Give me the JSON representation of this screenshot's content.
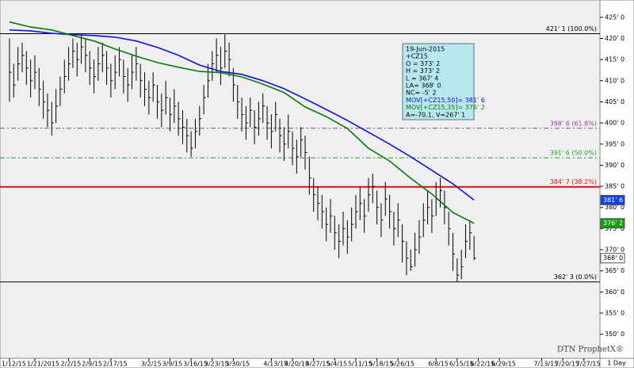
{
  "chart_data": {
    "type": "ohlc",
    "price": {
      "high": [
        420,
        414,
        418,
        419,
        417,
        415,
        416,
        413,
        410,
        407,
        405,
        408,
        411,
        415,
        418,
        420,
        419,
        421,
        420,
        417,
        415,
        418,
        419,
        417,
        414,
        416,
        418,
        415,
        413,
        416,
        418,
        414,
        412,
        410,
        412,
        409,
        407,
        410,
        406,
        408,
        405,
        403,
        401,
        398,
        401,
        404,
        409,
        414,
        417,
        420,
        418,
        421,
        419,
        413,
        409,
        406,
        404,
        406,
        403,
        405,
        407,
        404,
        402,
        405,
        401,
        399,
        402,
        398,
        396,
        399,
        397,
        392,
        387,
        385,
        383,
        380,
        382,
        378,
        376,
        379,
        377,
        380,
        383,
        385,
        382,
        387,
        388,
        384,
        381,
        386,
        383,
        379,
        381,
        376,
        372,
        370,
        374,
        377,
        381,
        384,
        382,
        386,
        387,
        384,
        379,
        374,
        368,
        370,
        376,
        377,
        373.25
      ],
      "low": [
        405,
        406,
        410,
        412,
        409,
        406,
        408,
        404,
        401,
        399,
        397,
        400,
        404,
        407,
        410,
        413,
        411,
        414,
        412,
        409,
        407,
        410,
        412,
        409,
        406,
        408,
        411,
        407,
        405,
        408,
        410,
        406,
        404,
        402,
        405,
        401,
        399,
        402,
        398,
        400,
        397,
        395,
        393,
        392,
        394,
        397,
        402,
        406,
        410,
        412,
        409,
        413,
        411,
        405,
        401,
        398,
        396,
        399,
        395,
        397,
        400,
        396,
        394,
        398,
        393,
        391,
        394,
        390,
        388,
        392,
        389,
        383,
        379,
        377,
        375,
        372,
        374,
        370,
        368,
        371,
        369,
        372,
        375,
        377,
        374,
        379,
        381,
        376,
        373,
        378,
        375,
        371,
        373,
        367,
        364,
        365,
        366,
        369,
        373,
        376,
        374,
        378,
        380,
        376,
        371,
        365,
        362.375,
        363,
        368,
        370,
        367.5
      ],
      "close": [
        412,
        409,
        414,
        416,
        413,
        410,
        412,
        408,
        405,
        403,
        400,
        404,
        408,
        411,
        414,
        417,
        415,
        418,
        416,
        413,
        411,
        414,
        416,
        413,
        410,
        412,
        415,
        411,
        409,
        412,
        414,
        410,
        408,
        406,
        409,
        405,
        403,
        406,
        402,
        404,
        401,
        399,
        397,
        394,
        398,
        401,
        406,
        410,
        414,
        416,
        413,
        417,
        415,
        409,
        405,
        402,
        400,
        403,
        399,
        401,
        404,
        400,
        398,
        402,
        397,
        395,
        398,
        394,
        392,
        396,
        393,
        387,
        383,
        381,
        379,
        376,
        378,
        374,
        372,
        375,
        373,
        376,
        379,
        381,
        378,
        383,
        385,
        380,
        377,
        382,
        379,
        375,
        377,
        372,
        368,
        366,
        370,
        373,
        377,
        380,
        378,
        382,
        384,
        380,
        375,
        369,
        364,
        366,
        372,
        374,
        368
      ]
    },
    "moving_averages": [
      {
        "color": "#1010e0",
        "x": [
          0,
          5,
          10,
          15,
          20,
          25,
          30,
          35,
          40,
          45,
          50,
          55,
          60,
          65,
          70,
          75,
          80,
          85,
          90,
          95,
          100,
          105,
          110
        ],
        "values": [
          422.0,
          421.8,
          421.2,
          420.9,
          420.7,
          420.3,
          419.4,
          417.9,
          416.0,
          413.7,
          412.2,
          411.5,
          410.0,
          408.1,
          405.7,
          403.2,
          400.6,
          397.8,
          395.0,
          392.0,
          388.8,
          385.6,
          381.75
        ]
      },
      {
        "color": "#0a7a0a",
        "x": [
          0,
          5,
          10,
          15,
          20,
          25,
          30,
          35,
          40,
          45,
          50,
          55,
          60,
          65,
          70,
          75,
          80,
          85,
          90,
          95,
          100,
          105,
          110
        ],
        "values": [
          423.9,
          422.7,
          422.0,
          420.7,
          419.4,
          417.5,
          415.8,
          414.3,
          413.2,
          412.2,
          411.9,
          410.9,
          409.2,
          407.2,
          403.8,
          401.5,
          398.7,
          394.0,
          391.0,
          386.9,
          383.2,
          378.8,
          376.25
        ]
      }
    ],
    "levels": [
      {
        "value": 421.125,
        "label": "421' 1 (100.0%)",
        "color": "#000000",
        "style": "solid"
      },
      {
        "value": 398.75,
        "label": "398' 6 (61.8%)",
        "color": "#9a3a9a",
        "style": "dashed"
      },
      {
        "value": 391.75,
        "label": "391' 6 (50.0%)",
        "color": "#2a9a2a",
        "style": "dashed"
      },
      {
        "value": 384.875,
        "label": "384' 7 (38.2%)",
        "color": "#e01010",
        "style": "solid"
      },
      {
        "value": 362.375,
        "label": "362' 3 (0.0%)",
        "color": "#000000",
        "style": "solid"
      }
    ],
    "value_boxes": [
      {
        "value": 381.75,
        "label": "381' 6",
        "color": "#1040e0",
        "text_color": "#ffffff"
      },
      {
        "value": 376.25,
        "label": "376' 2",
        "color": "#10a010",
        "text_color": "#ffffff"
      },
      {
        "value": 368,
        "label": "368' 0",
        "color": "#ffffff",
        "text_color": "#000000"
      }
    ],
    "ylim": [
      344.3,
      429.1
    ],
    "yticks": [
      {
        "value": 425,
        "label": "425' 0"
      },
      {
        "value": 420,
        "label": "420' 0"
      },
      {
        "value": 415,
        "label": "415' 0"
      },
      {
        "value": 410,
        "label": "410' 0"
      },
      {
        "value": 405,
        "label": "405' 0"
      },
      {
        "value": 400,
        "label": "400' 0"
      },
      {
        "value": 395,
        "label": "395' 0"
      },
      {
        "value": 390,
        "label": "390' 0"
      },
      {
        "value": 385,
        "label": "385' 0"
      },
      {
        "value": 380,
        "label": "380' 0"
      },
      {
        "value": 375,
        "label": "375' 0"
      },
      {
        "value": 370,
        "label": "370' 0"
      },
      {
        "value": 365,
        "label": "365' 0"
      },
      {
        "value": 360,
        "label": "360' 0"
      },
      {
        "value": 355,
        "label": "355' 0"
      },
      {
        "value": 350,
        "label": "350' 0"
      }
    ],
    "xlim": [
      -2.25,
      139.8
    ],
    "xticks": [
      {
        "value": 0,
        "label": "1/12/15"
      },
      {
        "value": 6,
        "label": "1/21/2015"
      },
      {
        "value": 14,
        "label": "2/2/15"
      },
      {
        "value": 19,
        "label": "2/9/15"
      },
      {
        "value": 24,
        "label": "2/17/15"
      },
      {
        "value": 33,
        "label": "3/2/15"
      },
      {
        "value": 38,
        "label": "3/9/15"
      },
      {
        "value": 43,
        "label": "3/16/15"
      },
      {
        "value": 48,
        "label": "3/23/15"
      },
      {
        "value": 53,
        "label": "3/30/15"
      },
      {
        "value": 62,
        "label": "4/13/15"
      },
      {
        "value": 67,
        "label": "4/20/15"
      },
      {
        "value": 72,
        "label": "4/27/15"
      },
      {
        "value": 77,
        "label": "5/4/15"
      },
      {
        "value": 82,
        "label": "5/11/15"
      },
      {
        "value": 87,
        "label": "5/18/15"
      },
      {
        "value": 92,
        "label": "5/26/15"
      },
      {
        "value": 101,
        "label": "6/8/15"
      },
      {
        "value": 106,
        "label": "6/15/15"
      },
      {
        "value": 111,
        "label": "6/22/15"
      },
      {
        "value": 116,
        "label": "6/29/15"
      },
      {
        "value": 126,
        "label": "7/13/15"
      },
      {
        "value": 131,
        "label": "7/20/15"
      },
      {
        "value": 136,
        "label": "7/27/15"
      }
    ],
    "tooltip": [
      "19-Jun-2015",
      "+CZ15",
      "O = 373' 2",
      "H = 373' 2",
      "L = 367' 4",
      "LA= 368' 0",
      "NC= -5' 2",
      "MOV[+CZ15,50]= 381' 6",
      "MOV[+CZ15,35]= 376' 2",
      "A=-70.1, V=267' 1"
    ],
    "tooltip_colors": [
      "#000000",
      "#000000",
      "#000000",
      "#000000",
      "#000000",
      "#000000",
      "#000000",
      "#1010e0",
      "#0a7a0a",
      "#000000"
    ],
    "watermark": "DTN ProphetX®",
    "period": "1 Day"
  }
}
